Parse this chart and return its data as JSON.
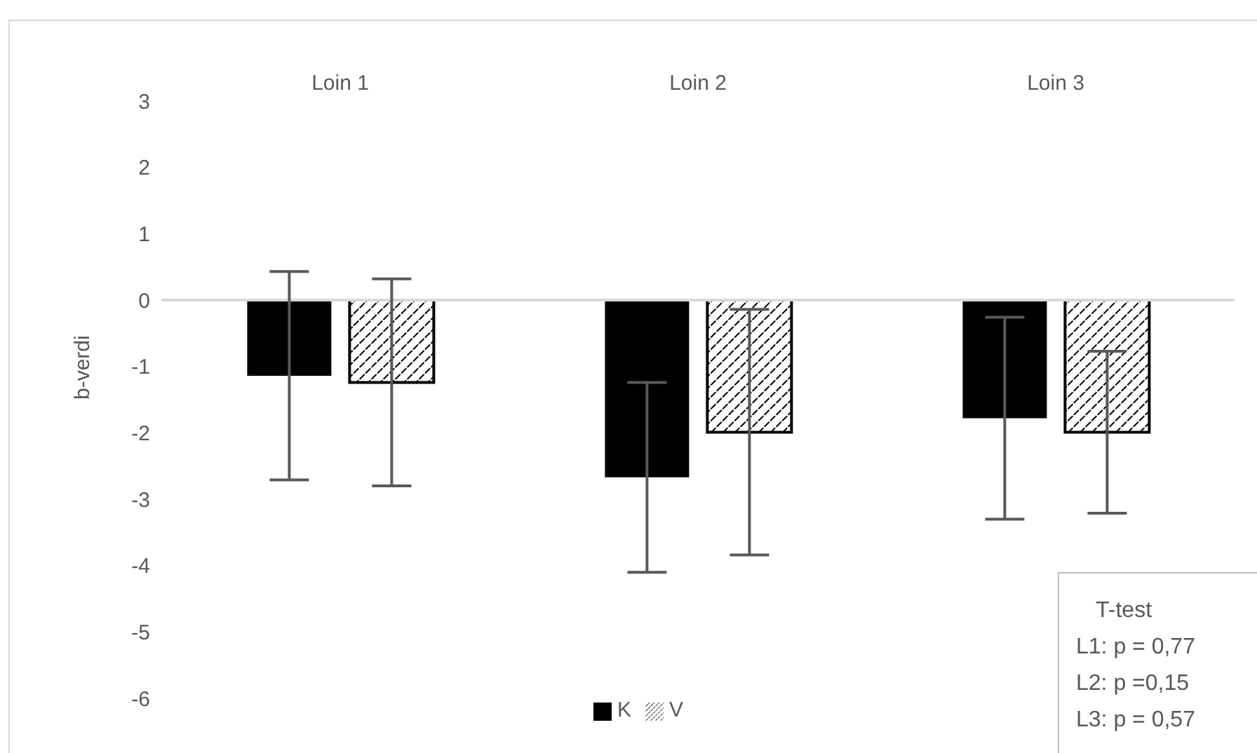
{
  "chart_data": {
    "type": "bar",
    "ylabel": "b-verdi",
    "categories": [
      "Loin 1",
      "Loin 2",
      "Loin 3"
    ],
    "series": [
      {
        "name": "K",
        "color": "#000000",
        "values": [
          -1.14,
          -2.67,
          -1.78
        ],
        "errors": [
          1.57,
          1.43,
          1.52
        ]
      },
      {
        "name": "V",
        "color": "#000000",
        "values": [
          -1.24,
          -1.99,
          -1.99
        ],
        "errors": [
          1.56,
          1.85,
          1.22
        ]
      }
    ],
    "ylim": [
      -6,
      3
    ],
    "yticks": [
      -6,
      -5,
      -4,
      -3,
      -2,
      -1,
      0,
      1,
      2,
      3
    ],
    "ref_lines": [
      {
        "axis": "y",
        "value": 0,
        "color": "#d9d9d9"
      }
    ],
    "legend": "bottom",
    "annotations": [
      "T-test",
      "L1: p = 0,77",
      "L2: p =0,15",
      "L3: p = 0,57"
    ]
  }
}
